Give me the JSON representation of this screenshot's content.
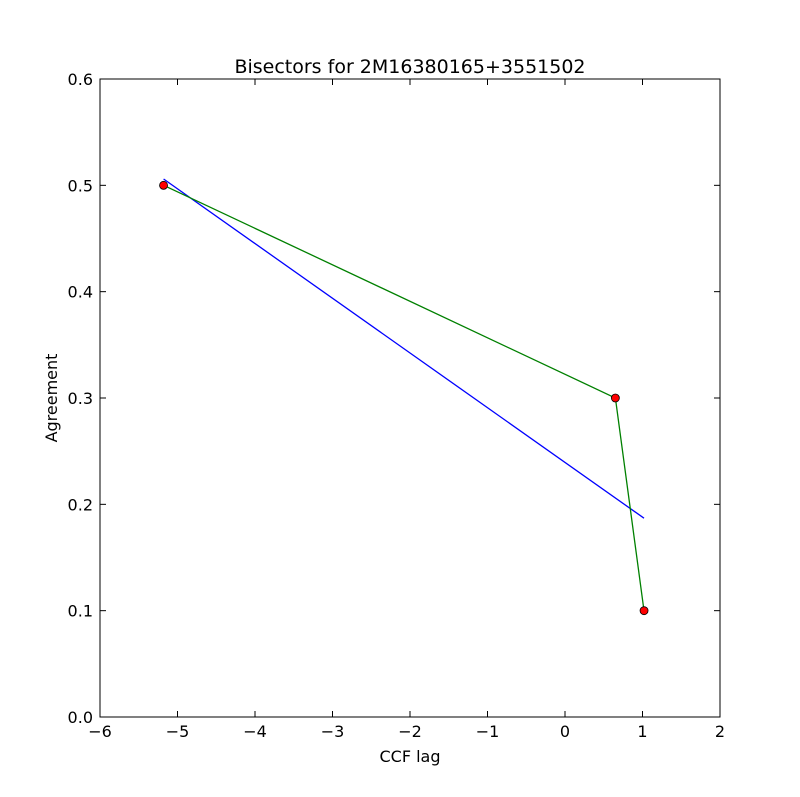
{
  "chart_data": {
    "type": "line",
    "title": "Bisectors for 2M16380165+3551502",
    "xlabel": "CCF lag",
    "ylabel": "Agreement",
    "xlim": [
      -6,
      2
    ],
    "ylim": [
      0,
      0.6
    ],
    "x_ticks": [
      -6,
      -5,
      -4,
      -3,
      -2,
      -1,
      0,
      1,
      2
    ],
    "x_tick_labels": [
      "−6",
      "−5",
      "−4",
      "−3",
      "−2",
      "−1",
      "0",
      "1",
      "2"
    ],
    "y_ticks": [
      0.0,
      0.1,
      0.2,
      0.3,
      0.4,
      0.5,
      0.6
    ],
    "y_tick_labels": [
      "0.0",
      "0.1",
      "0.2",
      "0.3",
      "0.4",
      "0.5",
      "0.6"
    ],
    "grid": false,
    "series": [
      {
        "color": "#0000ff",
        "marker": "none",
        "x": [
          -5.18,
          1.02
        ],
        "y": [
          0.506,
          0.187
        ]
      },
      {
        "color": "#008000",
        "marker": "circle",
        "marker_color": "#ff0000",
        "x": [
          -5.18,
          0.65,
          1.02
        ],
        "y": [
          0.5,
          0.3,
          0.1
        ]
      }
    ]
  }
}
